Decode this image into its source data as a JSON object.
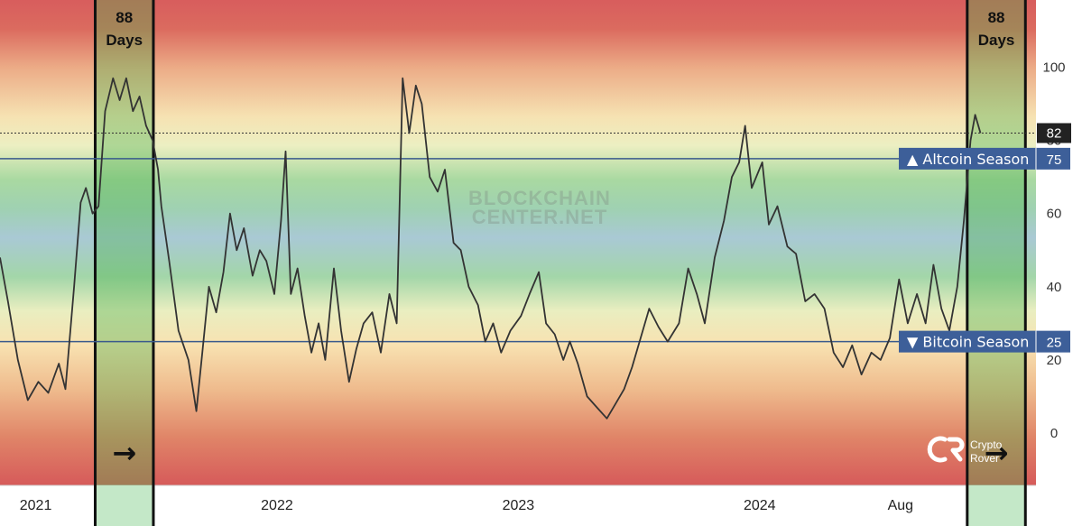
{
  "chart_data": {
    "type": "line",
    "title": "",
    "xlabel": "",
    "ylabel": "",
    "ylim": [
      -15,
      120
    ],
    "y_ticks": [
      0,
      20,
      40,
      60,
      80,
      100
    ],
    "x_tick_labels": [
      {
        "label": "2021",
        "date": "2021-01-01"
      },
      {
        "label": "2022",
        "date": "2022-01-01"
      },
      {
        "label": "2023",
        "date": "2023-01-01"
      },
      {
        "label": "2024",
        "date": "2024-01-01"
      },
      {
        "label": "Aug",
        "date": "2024-08-01"
      }
    ],
    "xlim": [
      "2020-11-08",
      "2025-02-22"
    ],
    "series": [
      {
        "values": [
          [
            "2020-11-08",
            48
          ],
          [
            "2020-11-20",
            36
          ],
          [
            "2020-12-05",
            20
          ],
          [
            "2020-12-20",
            9
          ],
          [
            "2021-01-05",
            14
          ],
          [
            "2021-01-20",
            11
          ],
          [
            "2021-02-05",
            19
          ],
          [
            "2021-02-15",
            12
          ],
          [
            "2021-02-28",
            40
          ],
          [
            "2021-03-10",
            63
          ],
          [
            "2021-03-18",
            67
          ],
          [
            "2021-03-28",
            60
          ],
          [
            "2021-04-06",
            62
          ],
          [
            "2021-04-16",
            88
          ],
          [
            "2021-04-28",
            97
          ],
          [
            "2021-05-08",
            91
          ],
          [
            "2021-05-18",
            97
          ],
          [
            "2021-05-28",
            88
          ],
          [
            "2021-06-07",
            92
          ],
          [
            "2021-06-17",
            84
          ],
          [
            "2021-06-27",
            80
          ],
          [
            "2021-07-05",
            72
          ],
          [
            "2021-07-10",
            62
          ],
          [
            "2021-07-22",
            47
          ],
          [
            "2021-08-05",
            28
          ],
          [
            "2021-08-20",
            20
          ],
          [
            "2021-09-01",
            6
          ],
          [
            "2021-09-10",
            22
          ],
          [
            "2021-09-20",
            40
          ],
          [
            "2021-10-01",
            33
          ],
          [
            "2021-10-12",
            44
          ],
          [
            "2021-10-22",
            60
          ],
          [
            "2021-11-01",
            50
          ],
          [
            "2021-11-12",
            56
          ],
          [
            "2021-11-25",
            43
          ],
          [
            "2021-12-06",
            50
          ],
          [
            "2021-12-16",
            47
          ],
          [
            "2021-12-28",
            38
          ],
          [
            "2022-01-07",
            58
          ],
          [
            "2022-01-14",
            77
          ],
          [
            "2022-01-22",
            38
          ],
          [
            "2022-02-01",
            45
          ],
          [
            "2022-02-12",
            32
          ],
          [
            "2022-02-22",
            22
          ],
          [
            "2022-03-05",
            30
          ],
          [
            "2022-03-15",
            20
          ],
          [
            "2022-03-28",
            45
          ],
          [
            "2022-04-08",
            28
          ],
          [
            "2022-04-20",
            14
          ],
          [
            "2022-05-01",
            23
          ],
          [
            "2022-05-12",
            30
          ],
          [
            "2022-05-25",
            33
          ],
          [
            "2022-06-07",
            22
          ],
          [
            "2022-06-20",
            38
          ],
          [
            "2022-07-01",
            30
          ],
          [
            "2022-07-10",
            97
          ],
          [
            "2022-07-20",
            82
          ],
          [
            "2022-07-30",
            95
          ],
          [
            "2022-08-08",
            90
          ],
          [
            "2022-08-20",
            70
          ],
          [
            "2022-09-01",
            66
          ],
          [
            "2022-09-12",
            72
          ],
          [
            "2022-09-25",
            52
          ],
          [
            "2022-10-06",
            50
          ],
          [
            "2022-10-18",
            40
          ],
          [
            "2022-11-01",
            35
          ],
          [
            "2022-11-12",
            25
          ],
          [
            "2022-11-24",
            30
          ],
          [
            "2022-12-06",
            22
          ],
          [
            "2022-12-20",
            28
          ],
          [
            "2023-01-05",
            32
          ],
          [
            "2023-01-18",
            38
          ],
          [
            "2023-02-01",
            44
          ],
          [
            "2023-02-12",
            30
          ],
          [
            "2023-02-25",
            27
          ],
          [
            "2023-03-10",
            20
          ],
          [
            "2023-03-20",
            25
          ],
          [
            "2023-04-01",
            19
          ],
          [
            "2023-04-15",
            10
          ],
          [
            "2023-04-30",
            7
          ],
          [
            "2023-05-15",
            4
          ],
          [
            "2023-05-28",
            8
          ],
          [
            "2023-06-10",
            12
          ],
          [
            "2023-06-22",
            18
          ],
          [
            "2023-07-05",
            26
          ],
          [
            "2023-07-18",
            34
          ],
          [
            "2023-08-01",
            29
          ],
          [
            "2023-08-15",
            25
          ],
          [
            "2023-09-01",
            30
          ],
          [
            "2023-09-15",
            45
          ],
          [
            "2023-09-28",
            38
          ],
          [
            "2023-10-10",
            30
          ],
          [
            "2023-10-25",
            48
          ],
          [
            "2023-11-08",
            58
          ],
          [
            "2023-11-20",
            70
          ],
          [
            "2023-12-01",
            74
          ],
          [
            "2023-12-10",
            84
          ],
          [
            "2023-12-20",
            67
          ],
          [
            "2024-01-05",
            74
          ],
          [
            "2024-01-15",
            57
          ],
          [
            "2024-01-28",
            62
          ],
          [
            "2024-02-12",
            51
          ],
          [
            "2024-02-25",
            49
          ],
          [
            "2024-03-10",
            36
          ],
          [
            "2024-03-24",
            38
          ],
          [
            "2024-04-08",
            34
          ],
          [
            "2024-04-22",
            22
          ],
          [
            "2024-05-06",
            18
          ],
          [
            "2024-05-20",
            24
          ],
          [
            "2024-06-03",
            16
          ],
          [
            "2024-06-18",
            22
          ],
          [
            "2024-07-02",
            20
          ],
          [
            "2024-07-16",
            26
          ],
          [
            "2024-07-30",
            42
          ],
          [
            "2024-08-12",
            30
          ],
          [
            "2024-08-26",
            38
          ],
          [
            "2024-09-08",
            30
          ],
          [
            "2024-09-20",
            46
          ],
          [
            "2024-10-02",
            34
          ],
          [
            "2024-10-14",
            28
          ],
          [
            "2024-10-26",
            40
          ],
          [
            "2024-11-05",
            58
          ],
          [
            "2024-11-15",
            80
          ],
          [
            "2024-11-22",
            87
          ],
          [
            "2024-11-30",
            82
          ]
        ]
      }
    ],
    "last_value_label": "82",
    "reference_lines": [
      {
        "value": 75,
        "label": "▲ Altcoin Season",
        "value_label": "75"
      },
      {
        "value": 25,
        "label": "▼ Bitcoin Season",
        "value_label": "25"
      }
    ],
    "highlight_windows": [
      {
        "start": "2021-04-01",
        "end": "2021-06-28",
        "label_number": "88",
        "label_unit": "Days",
        "arrow": "→"
      },
      {
        "start": "2024-11-10",
        "end": "2025-02-06",
        "label_number": "88",
        "label_unit": "Days",
        "arrow": "→"
      }
    ],
    "watermark_lines": [
      "BLOCKCHAIN",
      "CENTER.NET"
    ],
    "brand": {
      "name_line1": "Crypto",
      "name_line2": "Rover"
    },
    "colors": {
      "line": "#333333",
      "reference_line": "#3a5a8c",
      "label_bg": "#3d5f99",
      "gradient_top": "#d85d5d",
      "gradient_mid_warm": "#f5e2b0",
      "gradient_green": "#93d49f",
      "gradient_blue": "#a9c9d4",
      "highlight_fill": "#4cb050"
    }
  }
}
